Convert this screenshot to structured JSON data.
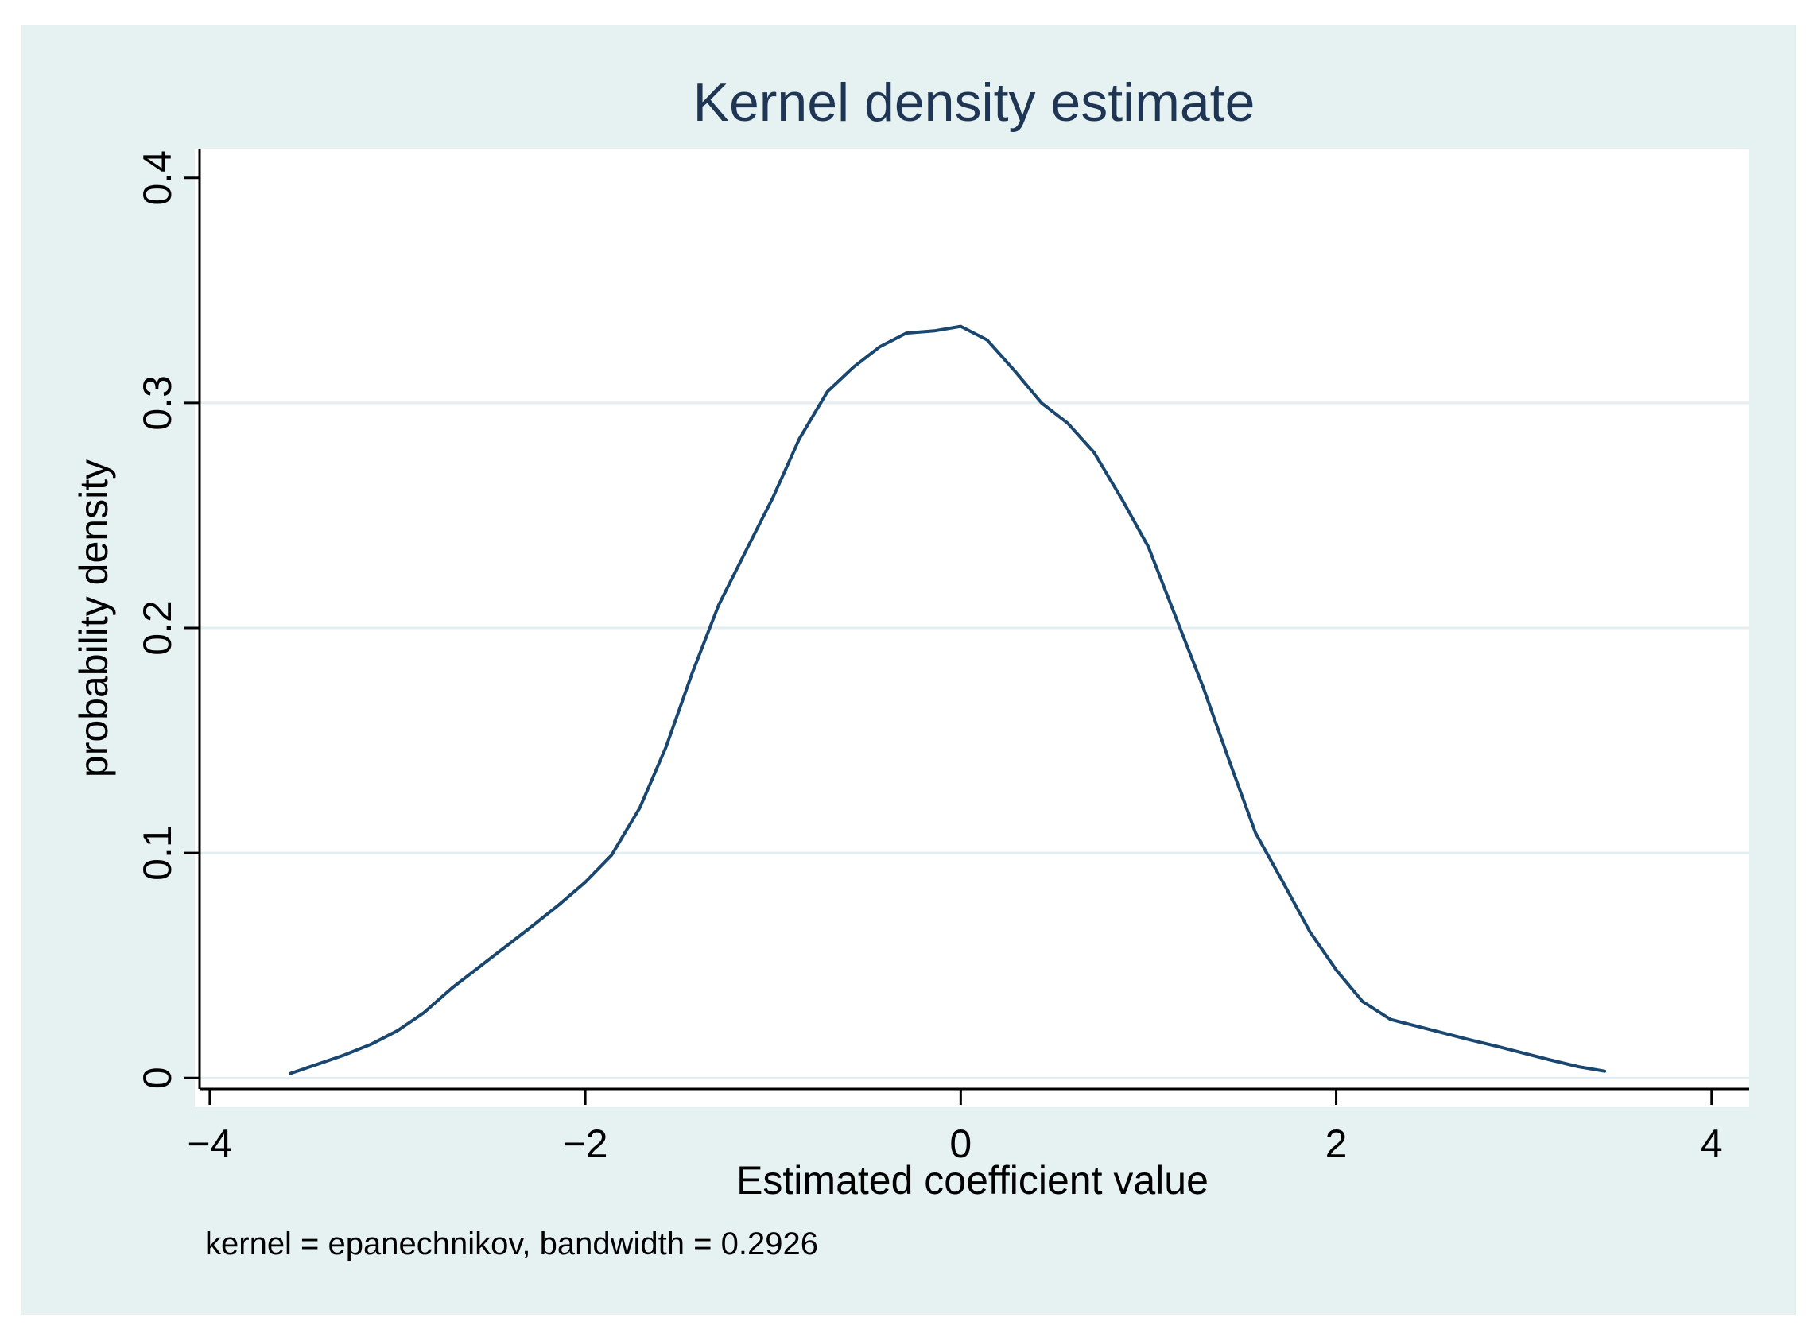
{
  "chart_data": {
    "type": "line",
    "title": "Kernel density estimate",
    "xlabel": "Estimated coefficient value",
    "ylabel": "probability density",
    "note": "kernel = epanechnikov, bandwidth = 0.2926",
    "xlim": [
      -4.08,
      4.2
    ],
    "ylim": [
      -0.013,
      0.413
    ],
    "x_ticks": [
      -4,
      -2,
      0,
      2,
      4
    ],
    "x_tick_labels": [
      "−4",
      "−2",
      "0",
      "2",
      "4"
    ],
    "y_ticks": [
      0,
      0.1,
      0.2,
      0.3,
      0.4
    ],
    "y_tick_labels": [
      "0",
      "0.1",
      "0.2",
      "0.3",
      "0.4"
    ],
    "grid": "horizontal",
    "series": [
      {
        "name": "density",
        "color": "#1a476f",
        "x": [
          -3.57,
          -3.43,
          -3.29,
          -3.14,
          -3.0,
          -2.86,
          -2.71,
          -2.57,
          -2.43,
          -2.29,
          -2.14,
          -2.0,
          -1.86,
          -1.71,
          -1.57,
          -1.43,
          -1.29,
          -1.14,
          -1.0,
          -0.86,
          -0.71,
          -0.57,
          -0.43,
          -0.29,
          -0.14,
          0.0,
          0.14,
          0.29,
          0.43,
          0.57,
          0.71,
          0.86,
          1.0,
          1.14,
          1.29,
          1.43,
          1.57,
          1.71,
          1.86,
          2.0,
          2.14,
          2.29,
          2.43,
          2.57,
          2.71,
          2.86,
          3.0,
          3.14,
          3.29,
          3.43
        ],
        "y": [
          0.002,
          0.006,
          0.01,
          0.015,
          0.021,
          0.029,
          0.04,
          0.049,
          0.058,
          0.067,
          0.077,
          0.087,
          0.099,
          0.12,
          0.147,
          0.18,
          0.21,
          0.235,
          0.258,
          0.284,
          0.305,
          0.316,
          0.325,
          0.331,
          0.332,
          0.334,
          0.328,
          0.314,
          0.3,
          0.291,
          0.278,
          0.257,
          0.236,
          0.206,
          0.174,
          0.141,
          0.109,
          0.088,
          0.065,
          0.048,
          0.034,
          0.026,
          0.023,
          0.02,
          0.017,
          0.014,
          0.011,
          0.008,
          0.005,
          0.003
        ]
      }
    ]
  }
}
